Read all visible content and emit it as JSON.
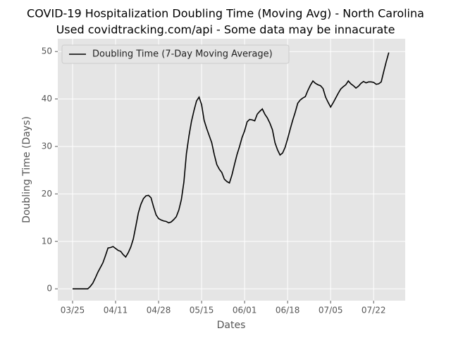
{
  "chart_data": {
    "type": "line",
    "title": "COVID-19 Hospitalization Doubling Time (Moving Avg) - North Carolina",
    "subtitle": "Used covidtracking.com/api - Some data may be innacurate",
    "x_label": "Dates",
    "y_label": "Doubling Time (Days)",
    "categories": [
      "03/25",
      null,
      null,
      null,
      null,
      null,
      null,
      null,
      null,
      null,
      null,
      null,
      null,
      null,
      null,
      null,
      null,
      "04/11",
      null,
      null,
      null,
      null,
      null,
      null,
      null,
      null,
      null,
      null,
      null,
      null,
      null,
      null,
      null,
      null,
      "04/28",
      null,
      null,
      null,
      null,
      null,
      null,
      null,
      null,
      null,
      null,
      null,
      null,
      null,
      null,
      null,
      null,
      "05/15",
      null,
      null,
      null,
      null,
      null,
      null,
      null,
      null,
      null,
      null,
      null,
      null,
      null,
      null,
      null,
      null,
      "06/01",
      null,
      null,
      null,
      null,
      null,
      null,
      null,
      null,
      null,
      null,
      null,
      null,
      null,
      null,
      null,
      null,
      "06/18",
      null,
      null,
      null,
      null,
      null,
      null,
      null,
      null,
      null,
      null,
      null,
      null,
      null,
      null,
      null,
      null,
      "07/05",
      null,
      null,
      null,
      null,
      null,
      null,
      null,
      null,
      null,
      null,
      null,
      null,
      null,
      null,
      null,
      null,
      "07/22",
      null,
      null,
      null,
      null,
      null,
      null
    ],
    "series": [
      {
        "name": "Doubling Time (7-Day Moving Average)",
        "color": "#000000",
        "values": [
          0,
          0,
          0,
          0,
          0,
          0,
          0,
          0.5,
          1.2,
          2.3,
          3.5,
          4.5,
          5.5,
          7.0,
          8.6,
          8.7,
          8.9,
          8.5,
          8.1,
          7.9,
          7.2,
          6.7,
          7.6,
          8.8,
          10.5,
          13.2,
          16.0,
          17.8,
          19.0,
          19.6,
          19.7,
          19.2,
          17.3,
          15.6,
          14.8,
          14.5,
          14.3,
          14.2,
          13.9,
          14.1,
          14.6,
          15.2,
          16.6,
          18.8,
          22.5,
          28.5,
          32.2,
          35.3,
          37.6,
          39.6,
          40.4,
          38.8,
          35.5,
          33.8,
          32.3,
          30.8,
          28.3,
          26.2,
          25.2,
          24.5,
          23.1,
          22.6,
          22.3,
          24.0,
          26.2,
          28.3,
          30.0,
          31.9,
          33.3,
          35.2,
          35.7,
          35.6,
          35.4,
          36.8,
          37.4,
          37.9,
          36.8,
          36.0,
          34.9,
          33.5,
          30.8,
          29.3,
          28.2,
          28.6,
          29.8,
          31.6,
          33.6,
          35.5,
          37.2,
          39.1,
          39.8,
          40.2,
          40.5,
          41.8,
          42.9,
          43.8,
          43.3,
          43.0,
          42.8,
          42.2,
          40.4,
          39.3,
          38.3,
          39.2,
          40.2,
          41.2,
          42.1,
          42.6,
          43.0,
          43.8,
          43.2,
          42.8,
          42.3,
          42.7,
          43.3,
          43.7,
          43.4,
          43.6,
          43.6,
          43.5,
          43.1,
          43.2,
          43.6,
          45.8,
          47.9,
          49.8
        ]
      }
    ],
    "ylim": [
      -2.5,
      52.7
    ],
    "yticks": [
      0,
      10,
      20,
      30,
      40,
      50
    ],
    "grid": true,
    "legend": "upper left"
  }
}
